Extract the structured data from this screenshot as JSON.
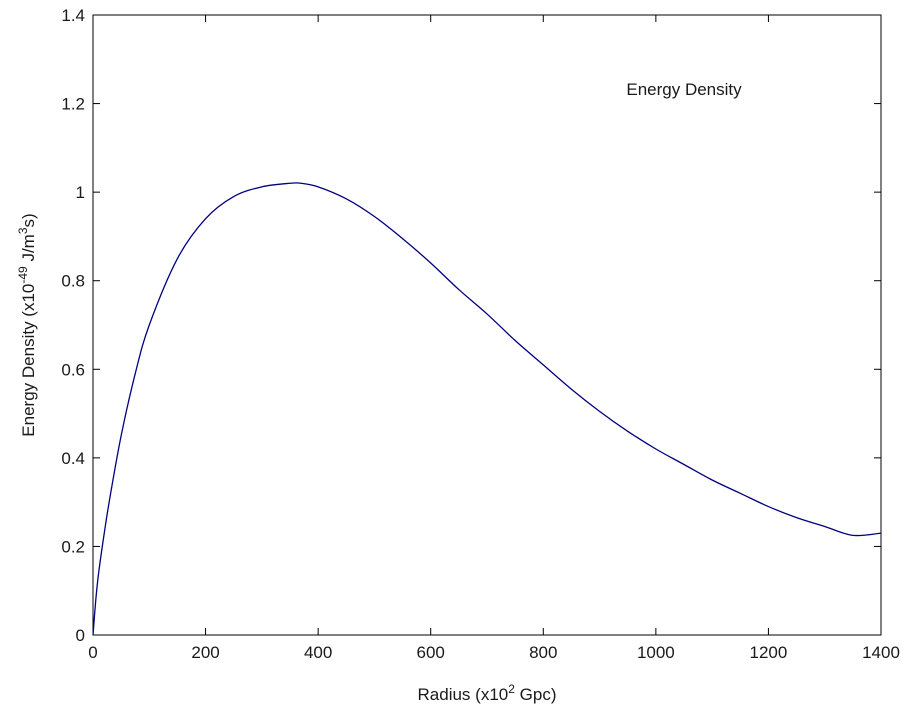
{
  "chart_data": {
    "type": "line",
    "title": "",
    "xlabel": {
      "text": "Radius (x10",
      "sup": "2",
      "after": " Gpc)"
    },
    "ylabel": {
      "text": "Energy Density (x10",
      "sup": "-49",
      "mid": " J/m",
      "sup2": "3",
      "after": "s)"
    },
    "xlim": [
      0,
      1400
    ],
    "ylim": [
      0,
      1.4
    ],
    "xticks": [
      "0",
      "200",
      "400",
      "600",
      "800",
      "1000",
      "1200",
      "1400"
    ],
    "yticks": [
      "0",
      "0.2",
      "0.4",
      "0.6",
      "0.8",
      "1",
      "1.2",
      "1.4"
    ],
    "grid": false,
    "annotation": "Energy Density",
    "line_color": "#00007f",
    "series": [
      {
        "x": [
          0,
          5,
          10,
          20,
          30,
          50,
          75,
          100,
          150,
          200,
          250,
          300,
          350,
          370,
          400,
          450,
          500,
          550,
          600,
          650,
          700,
          750,
          800,
          850,
          900,
          950,
          1000,
          1050,
          1100,
          1150,
          1200,
          1250,
          1300,
          1350,
          1400
        ],
        "values": [
          0.0,
          0.08,
          0.14,
          0.23,
          0.31,
          0.45,
          0.59,
          0.7,
          0.85,
          0.94,
          0.99,
          1.012,
          1.02,
          1.02,
          1.012,
          0.985,
          0.945,
          0.895,
          0.84,
          0.78,
          0.725,
          0.665,
          0.61,
          0.555,
          0.505,
          0.46,
          0.42,
          0.385,
          0.35,
          0.32,
          0.29,
          0.265,
          0.245,
          0.225,
          0.23
        ]
      }
    ]
  }
}
